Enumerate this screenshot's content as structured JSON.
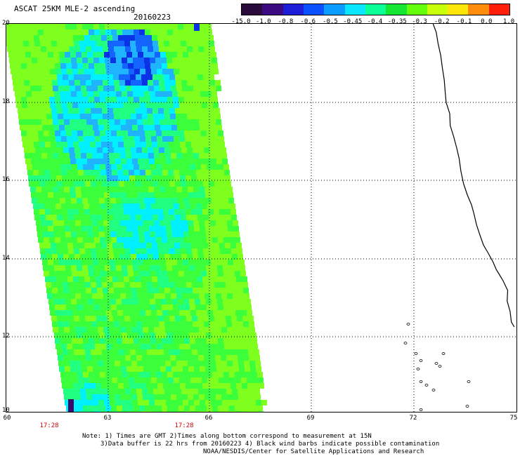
{
  "header": {
    "title": "ASCAT 25KM MLE-2 ascending",
    "date": "20160223"
  },
  "colorbar": {
    "labels": [
      "-15.0",
      "-1.0",
      "-0.8",
      "-0.6",
      "-0.5",
      "-0.45",
      "-0.4",
      "-0.35",
      "-0.3",
      "-0.2",
      "-0.1",
      "0.0",
      "1.0"
    ],
    "colors": [
      "#2a0a3a",
      "#3c0a80",
      "#1e1ed8",
      "#0a50ff",
      "#0a9cff",
      "#0ae6ff",
      "#0aff96",
      "#14e632",
      "#64ff0a",
      "#c8ff0a",
      "#ffe60a",
      "#ff8c0a",
      "#ff1e0a"
    ]
  },
  "axes": {
    "lat_labels": [
      "20",
      "18",
      "16",
      "14",
      "12",
      "10"
    ],
    "lon_labels": [
      "60",
      "63",
      "66",
      "69",
      "72",
      "75"
    ],
    "times": [
      "17:28",
      "17:28"
    ]
  },
  "swath_colors": {
    "lime": "#7fff1e",
    "green": "#3cff3c",
    "mint": "#20ff80",
    "cyan": "#00f0ff",
    "sky": "#20b4ff",
    "blue": "#1464ff",
    "deepblue": "#0a32e6",
    "purple": "#3a0a6a"
  },
  "notes": {
    "line1": "Note: 1) Times are GMT 2)Times along bottom correspond to measurement at 15N",
    "line2": "3)Data buffer is 22 hrs from 20160223 4) Black wind barbs indicate possible contamination",
    "line3": "NOAA/NESDIS/Center for Satellite Applications and Research"
  }
}
